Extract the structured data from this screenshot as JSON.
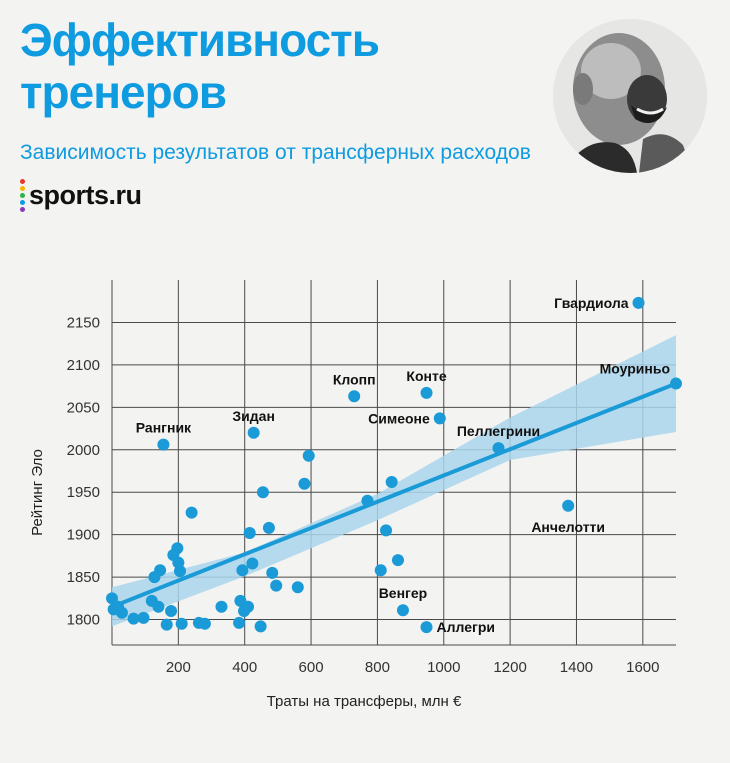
{
  "header": {
    "title_line1": "Эффективность",
    "title_line2": "тренеров",
    "subtitle": "Зависимость результатов от трансферных расходов",
    "logo": "sports.ru",
    "logo_dot_colors": [
      "#e8372a",
      "#f7b500",
      "#2cb34a",
      "#0f9be0",
      "#8a3ab9"
    ]
  },
  "chart_data": {
    "type": "scatter",
    "xlabel": "Траты на трансферы, млн €",
    "ylabel": "Рейтинг Эло",
    "xlim": [
      0,
      1700
    ],
    "ylim": [
      1770,
      2200
    ],
    "x_ticks": [
      200,
      400,
      600,
      800,
      1000,
      1200,
      1400,
      1600
    ],
    "y_ticks": [
      1800,
      1850,
      1900,
      1950,
      2000,
      2050,
      2100,
      2150
    ],
    "grid": true,
    "point_color": "#1a9ad6",
    "trend_color": "#1a9ad6",
    "band_color": "#a9d5ec",
    "trend": {
      "x": [
        0,
        1700
      ],
      "y": [
        1815,
        2078
      ]
    },
    "band": {
      "x": [
        0,
        400,
        800,
        1200,
        1700
      ],
      "upper": [
        1838,
        1879,
        1948,
        2038,
        2135
      ],
      "lower": [
        1792,
        1851,
        1917,
        1988,
        2021
      ]
    },
    "labeled_points": [
      {
        "name": "Гвардиола",
        "x": 1587,
        "y": 2173,
        "label_pos": "left"
      },
      {
        "name": "Моуриньо",
        "x": 1700,
        "y": 2078,
        "label_pos": "above-left"
      },
      {
        "name": "Клопп",
        "x": 730,
        "y": 2063,
        "label_pos": "above"
      },
      {
        "name": "Конте",
        "x": 948,
        "y": 2067,
        "label_pos": "above"
      },
      {
        "name": "Симеоне",
        "x": 988,
        "y": 2037,
        "label_pos": "left"
      },
      {
        "name": "Пеллегрини",
        "x": 1165,
        "y": 2002,
        "label_pos": "above"
      },
      {
        "name": "Зидан",
        "x": 427,
        "y": 2020,
        "label_pos": "above"
      },
      {
        "name": "Рангник",
        "x": 155,
        "y": 2006,
        "label_pos": "above"
      },
      {
        "name": "Анчелотти",
        "x": 1375,
        "y": 1934,
        "label_pos": "below"
      },
      {
        "name": "Венгер",
        "x": 877,
        "y": 1811,
        "label_pos": "above"
      },
      {
        "name": "Аллегри",
        "x": 948,
        "y": 1791,
        "label_pos": "right"
      }
    ],
    "points": [
      {
        "x": 0,
        "y": 1825
      },
      {
        "x": 5,
        "y": 1812
      },
      {
        "x": 18,
        "y": 1815
      },
      {
        "x": 30,
        "y": 1808
      },
      {
        "x": 65,
        "y": 1801
      },
      {
        "x": 95,
        "y": 1802
      },
      {
        "x": 120,
        "y": 1822
      },
      {
        "x": 128,
        "y": 1850
      },
      {
        "x": 140,
        "y": 1815
      },
      {
        "x": 145,
        "y": 1858
      },
      {
        "x": 165,
        "y": 1794
      },
      {
        "x": 178,
        "y": 1810
      },
      {
        "x": 185,
        "y": 1876
      },
      {
        "x": 197,
        "y": 1884
      },
      {
        "x": 200,
        "y": 1867
      },
      {
        "x": 205,
        "y": 1857
      },
      {
        "x": 210,
        "y": 1795
      },
      {
        "x": 240,
        "y": 1926
      },
      {
        "x": 262,
        "y": 1796
      },
      {
        "x": 280,
        "y": 1795
      },
      {
        "x": 330,
        "y": 1815
      },
      {
        "x": 383,
        "y": 1796
      },
      {
        "x": 387,
        "y": 1822
      },
      {
        "x": 393,
        "y": 1858
      },
      {
        "x": 398,
        "y": 1810
      },
      {
        "x": 410,
        "y": 1815
      },
      {
        "x": 415,
        "y": 1902
      },
      {
        "x": 423,
        "y": 1866
      },
      {
        "x": 448,
        "y": 1792
      },
      {
        "x": 455,
        "y": 1950
      },
      {
        "x": 473,
        "y": 1908
      },
      {
        "x": 483,
        "y": 1855
      },
      {
        "x": 495,
        "y": 1840
      },
      {
        "x": 560,
        "y": 1838
      },
      {
        "x": 580,
        "y": 1960
      },
      {
        "x": 593,
        "y": 1993
      },
      {
        "x": 770,
        "y": 1940
      },
      {
        "x": 810,
        "y": 1858
      },
      {
        "x": 826,
        "y": 1905
      },
      {
        "x": 843,
        "y": 1962
      },
      {
        "x": 862,
        "y": 1870
      }
    ]
  }
}
